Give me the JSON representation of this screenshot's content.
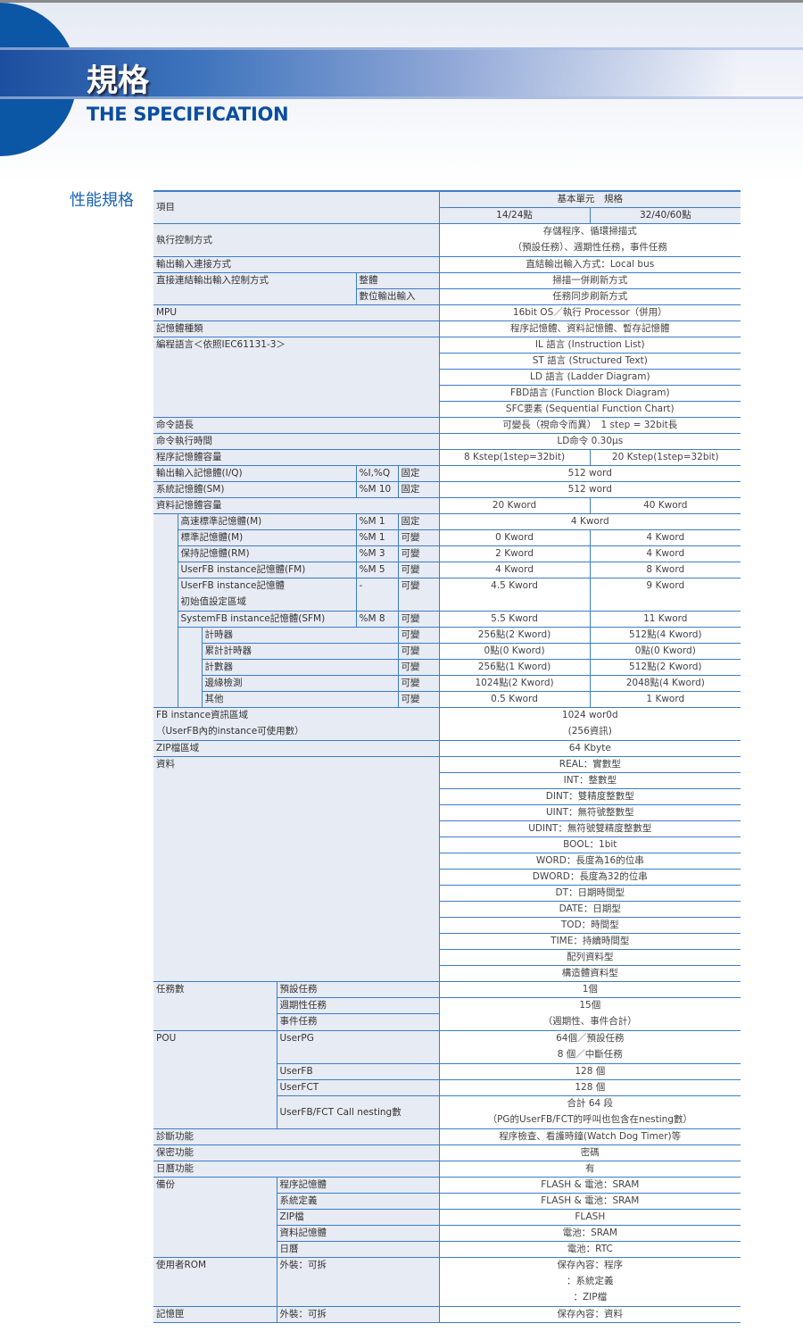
{
  "header": {
    "title_zh": "規格",
    "title_en": "THE SPECIFICATION"
  },
  "section_title": "性能規格",
  "colors": {
    "accent": "#0c56a6",
    "rule": "#3d7cc9",
    "label_bg": "#e7ebf3"
  },
  "table": {
    "head": {
      "item": "項目",
      "unit": "基本單元　規格",
      "col1": "14/24點",
      "col2": "32/40/60點"
    },
    "exec": {
      "label": "執行控制方式",
      "value": [
        "存儲程序、循環掃描式",
        "（預設任務）、週期性任務，事件任務"
      ]
    },
    "io_conn": {
      "label": "輸出輸入連接方式",
      "value": "直結輸出輸入方式：Local bus"
    },
    "direct_io": {
      "label": "直接連結輸出輸入控制方式",
      "sub": [
        {
          "label": "整體",
          "value": "掃描一併刷新方式"
        },
        {
          "label": "數位輸出輸入",
          "value": "任務同步刷新方式"
        }
      ]
    },
    "mpu": {
      "label": "MPU",
      "value": "16bit OS／執行 Processor（併用）"
    },
    "mem_type": {
      "label": "記憶體種類",
      "value": "程序記憶體、資料記憶體、暫存記憶體"
    },
    "lang": {
      "label": "編程語言＜依照IEC61131-3＞",
      "values": [
        "IL 語言 (Instruction List)",
        "ST 語言 (Structured Text)",
        "LD 語言 (Ladder Diagram)",
        "FBD語言 (Function Block Diagram)",
        "SFC要素 (Sequential Function Chart)"
      ]
    },
    "instr_len": {
      "label": "命令語長",
      "value": "可變長（視命令而異）　1 step = 32bit長"
    },
    "instr_time": {
      "label": "命令執行時間",
      "value": "LD命令 0.30μs"
    },
    "prog_mem": {
      "label": "程序記憶體容量",
      "col1": "8 Kstep(1step=32bit)",
      "col2": "20 Kstep(1step=32bit)"
    },
    "io_mem": {
      "label": "輸出輸入記憶體(I/Q)",
      "addr": "%I,%Q",
      "type": "固定",
      "value": "512 word"
    },
    "sys_mem": {
      "label": "系統記憶體(SM)",
      "addr": "%M 10",
      "type": "固定",
      "value": "512 word"
    },
    "data_mem": {
      "label": "資料記憶體容量",
      "col1": "20 Kword",
      "col2": "40 Kword",
      "hs": {
        "label": "高速標準記憶體(M)",
        "addr": "%M 1",
        "type": "固定",
        "value": "4 Kword"
      },
      "items": [
        {
          "label": "標準記憶體(M)",
          "addr": "%M 1",
          "type": "可變",
          "col1": "0 Kword",
          "col2": "4 Kword"
        },
        {
          "label": "保持記憶體(RM)",
          "addr": "%M 3",
          "type": "可變",
          "col1": "2 Kword",
          "col2": "4 Kword"
        },
        {
          "label": "UserFB instance記憶體(FM)",
          "addr": "%M 5",
          "type": "可變",
          "col1": "4 Kword",
          "col2": "8 Kword"
        }
      ],
      "fbinit": {
        "label": [
          "UserFB instance記憶體",
          "初始值設定區域"
        ],
        "addr": "-",
        "type": "可變",
        "col1": "4.5 Kword",
        "col2": "9 Kword"
      },
      "sfm": {
        "label": "SystemFB instance記憶體(SFM)",
        "addr": "%M 8",
        "type": "可變",
        "col1": "5.5 Kword",
        "col2": "11 Kword",
        "items": [
          {
            "label": "計時器",
            "type": "可變",
            "col1": "256點(2 Kword)",
            "col2": "512點(4 Kword)"
          },
          {
            "label": "累計計時器",
            "type": "可變",
            "col1": "0點(0 Kword)",
            "col2": "0點(0 Kword)"
          },
          {
            "label": "計數器",
            "type": "可變",
            "col1": "256點(1 Kword)",
            "col2": "512點(2 Kword)"
          },
          {
            "label": "邊緣檢測",
            "type": "可變",
            "col1": "1024點(2 Kword)",
            "col2": "2048點(4 Kword)"
          },
          {
            "label": "其他",
            "type": "可變",
            "col1": "0.5 Kword",
            "col2": "1 Kword"
          }
        ]
      }
    },
    "fb_info": {
      "label": [
        "FB instance資訊區域",
        "（UserFB內的instance可使用數）"
      ],
      "value": [
        "1024 wor0d",
        "(256資訊)"
      ]
    },
    "zip": {
      "label": "ZIP檔區域",
      "value": "64 Kbyte"
    },
    "data": {
      "label": "資料",
      "values": [
        "REAL：實數型",
        "INT：整數型",
        "DINT：雙精度整數型",
        "UINT：無符號整數型",
        "UDINT：無符號雙精度整數型",
        "BOOL：1bit",
        "WORD：長度為16的位串",
        "DWORD：長度為32的位串",
        "DT：日期時間型",
        "DATE：日期型",
        "TOD：時間型",
        "TIME：持續時間型",
        "配列資料型",
        "構造體資料型"
      ]
    },
    "tasks": {
      "label": "任務數",
      "sub": [
        "預設任務",
        "週期性任務",
        "事件任務"
      ],
      "v1": "1個",
      "v2": [
        "15個",
        "（週期性、事件合計）"
      ]
    },
    "pou": {
      "label": "POU",
      "userpg": {
        "label": "UserPG",
        "value": [
          "64個／預設任務",
          "8 個／中斷任務"
        ]
      },
      "userfb": {
        "label": "UserFB",
        "value": "128 個"
      },
      "userfct": {
        "label": "UserFCT",
        "value": "128 個"
      },
      "nesting": {
        "label": "UserFB/FCT Call nesting數",
        "value": [
          "合計 64 段",
          "（PG的UserFB/FCT的呼叫也包含在nesting數）"
        ]
      }
    },
    "diag": {
      "label": "診斷功能",
      "value": "程序檢查、看護時鐘(Watch Dog Timer)等"
    },
    "secure": {
      "label": "保密功能",
      "value": "密碼"
    },
    "calendar": {
      "label": "日曆功能",
      "value": "有"
    },
    "backup": {
      "label": "備份",
      "items": [
        {
          "label": "程序記憶體",
          "value": "FLASH & 電池：SRAM"
        },
        {
          "label": "系統定義",
          "value": "FLASH & 電池：SRAM"
        },
        {
          "label": "ZIP檔",
          "value": "FLASH"
        },
        {
          "label": "資料記憶體",
          "value": "電池：SRAM"
        },
        {
          "label": "日曆",
          "value": "電池：RTC"
        }
      ]
    },
    "user_rom": {
      "label": "使用者ROM",
      "sub": "外裝：可拆",
      "value": [
        "保存內容：程序",
        "：系統定義",
        "：ZIP檔"
      ]
    },
    "cartridge": {
      "label": "記憶匣",
      "sub": "外裝：可拆",
      "value": "保存內容：資料"
    }
  }
}
